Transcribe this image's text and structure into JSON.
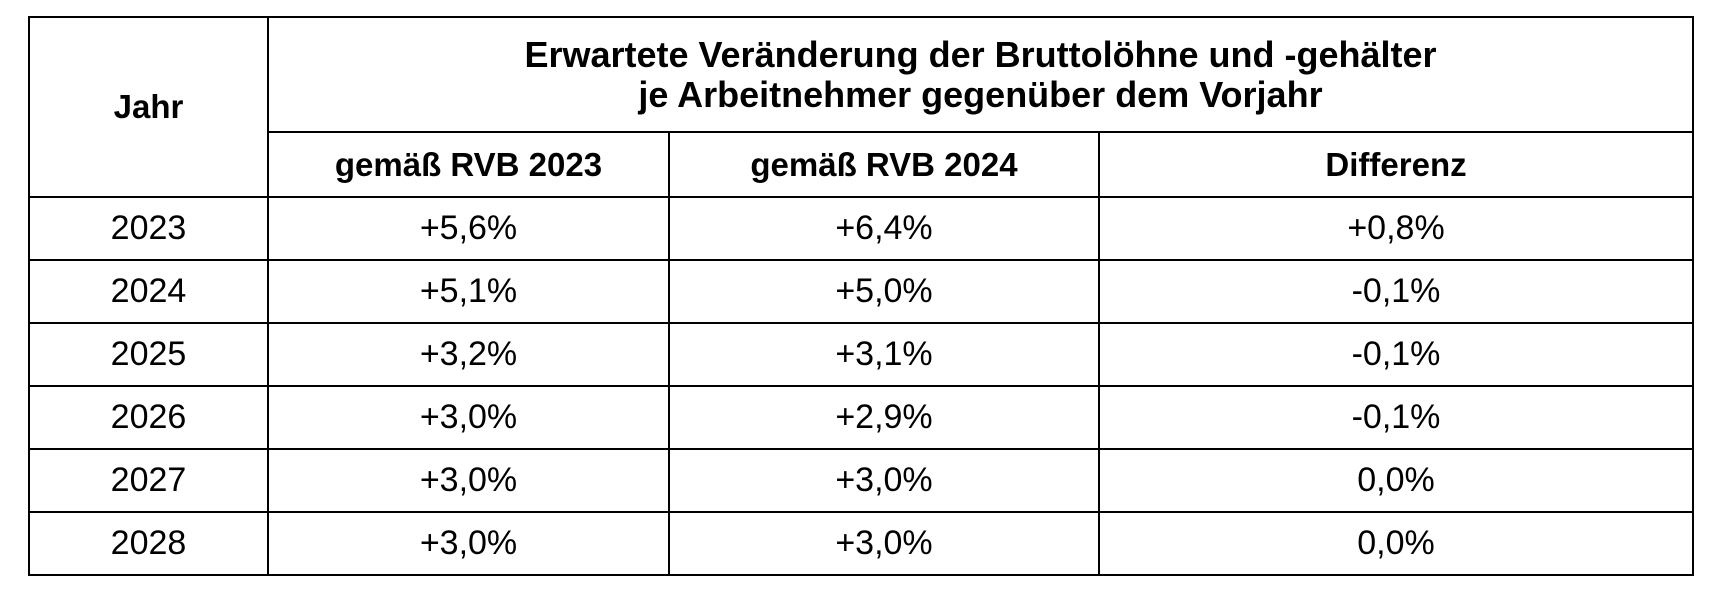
{
  "table": {
    "year_header": "Jahr",
    "title_line_1": "Erwartete Veränderung der Bruttolöhne und -gehälter",
    "title_line_2": "je Arbeitnehmer gegenüber dem Vorjahr",
    "subheaders": [
      "gemäß RVB 2023",
      "gemäß RVB 2024",
      "Differenz"
    ],
    "rows": [
      {
        "year": "2023",
        "rvb2023": "+5,6%",
        "rvb2024": "+6,4%",
        "diff": "+0,8%"
      },
      {
        "year": "2024",
        "rvb2023": "+5,1%",
        "rvb2024": "+5,0%",
        "diff": "-0,1%"
      },
      {
        "year": "2025",
        "rvb2023": "+3,2%",
        "rvb2024": "+3,1%",
        "diff": "-0,1%"
      },
      {
        "year": "2026",
        "rvb2023": "+3,0%",
        "rvb2024": "+2,9%",
        "diff": "-0,1%"
      },
      {
        "year": "2027",
        "rvb2023": "+3,0%",
        "rvb2024": "+3,0%",
        "diff": "0,0%"
      },
      {
        "year": "2028",
        "rvb2023": "+3,0%",
        "rvb2024": "+3,0%",
        "diff": "0,0%"
      }
    ]
  }
}
